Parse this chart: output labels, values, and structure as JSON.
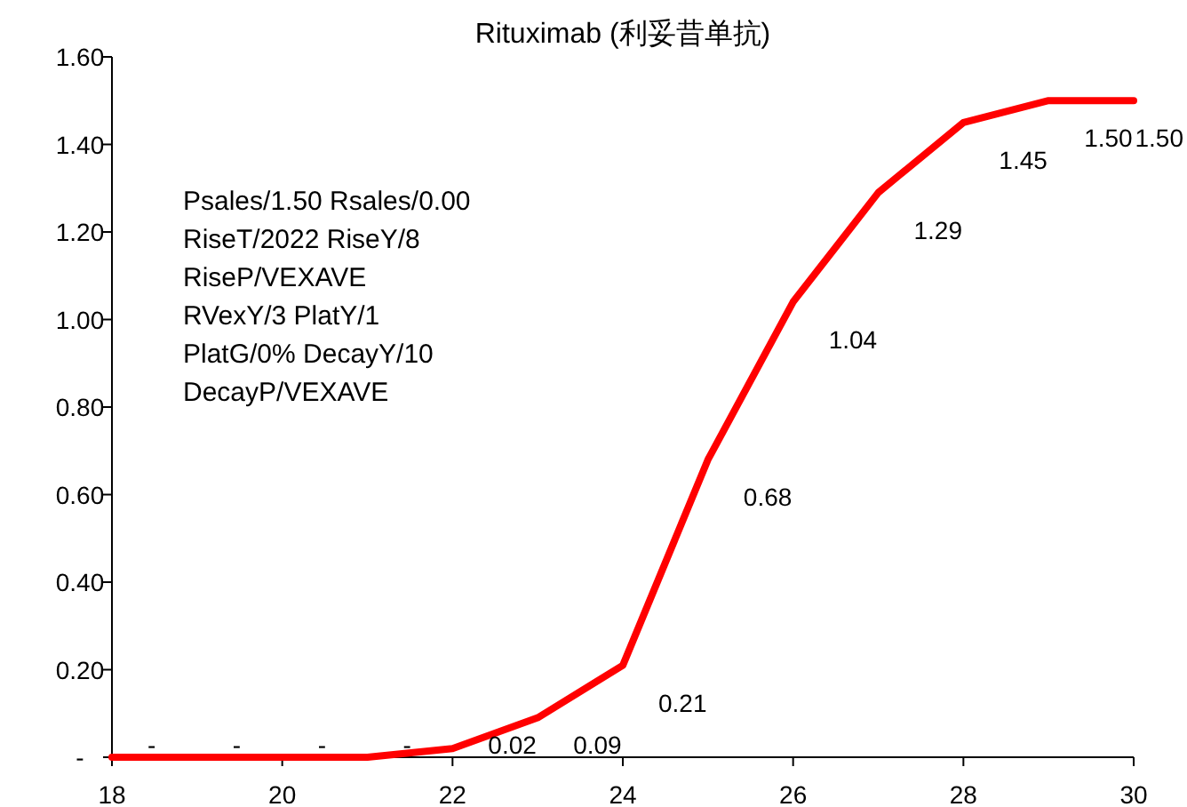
{
  "chart_data": {
    "type": "line",
    "title": "Rituximab (利妥昔单抗)",
    "x": [
      18,
      19,
      20,
      21,
      22,
      23,
      24,
      25,
      26,
      27,
      28,
      29,
      30
    ],
    "series": [
      {
        "color": "#ff0000",
        "values": [
          0,
          0,
          0,
          0,
          0.02,
          0.09,
          0.21,
          0.68,
          1.04,
          1.29,
          1.45,
          1.5,
          1.5
        ],
        "value_labels": [
          "-",
          "-",
          "-",
          "-",
          "0.02",
          "0.09",
          "0.21",
          "0.68",
          "1.04",
          "1.29",
          "1.45",
          "1.50",
          "1.50"
        ]
      }
    ],
    "xlim": [
      18,
      30
    ],
    "xticks": [
      18,
      20,
      22,
      24,
      26,
      28,
      30
    ],
    "ylim": [
      0,
      1.6
    ],
    "yticks": [
      {
        "value": 0,
        "label": "-"
      },
      {
        "value": 0.2,
        "label": "0.20"
      },
      {
        "value": 0.4,
        "label": "0.40"
      },
      {
        "value": 0.6,
        "label": "0.60"
      },
      {
        "value": 0.8,
        "label": "0.80"
      },
      {
        "value": 1.0,
        "label": "1.00"
      },
      {
        "value": 1.2,
        "label": "1.20"
      },
      {
        "value": 1.4,
        "label": "1.40"
      },
      {
        "value": 1.6,
        "label": "1.60"
      }
    ],
    "annotations": [
      "Psales/1.50 Rsales/0.00",
      "RiseT/2022 RiseY/8",
      "RiseP/VEXAVE",
      "RVexY/3 PlatY/1",
      "PlatG/0% DecayY/10",
      "DecayP/VEXAVE"
    ],
    "grid": false,
    "marker": "none",
    "line_style": "solid"
  }
}
